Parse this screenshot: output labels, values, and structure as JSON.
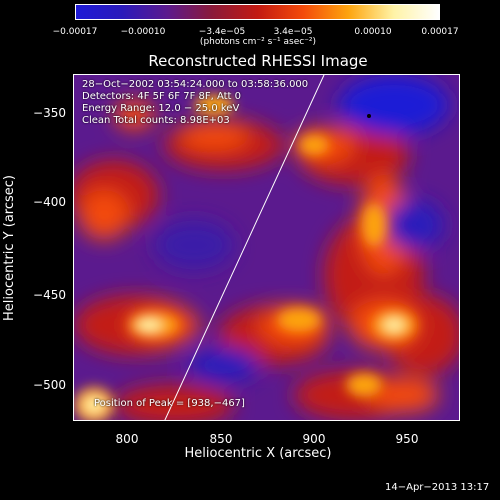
{
  "colorbar": {
    "ticks": [
      "−0.00017",
      "−0.00010",
      "−3.4e−05",
      "3.4e−05",
      "0.00010",
      "0.00017"
    ],
    "units": "(photons cm⁻² s⁻¹ asec⁻²)",
    "colors": [
      "#1e1ad6",
      "#2a1abb",
      "#5b1a8e",
      "#8a1a3a",
      "#c21a12",
      "#f34a0a",
      "#fda40e",
      "#fff3a6",
      "#ffffff"
    ]
  },
  "plot": {
    "title": "Reconstructed RHESSI Image",
    "info_lines": [
      "28−Oct−2002 03:54:24.000 to 03:58:36.000",
      "Detectors: 4F 5F 6F 7F 8F, Att 0",
      "Energy Range: 12.0 − 25.0 keV",
      "Clean     Total counts: 8.98E+03"
    ],
    "peak_text": "Position of Peak = [938,−467]",
    "xlabel": "Heliocentric X (arcsec)",
    "ylabel": "Heliocentric Y (arcsec)",
    "xticks": [
      "800",
      "850",
      "900",
      "950"
    ],
    "yticks": [
      "−350",
      "−400",
      "−450",
      "−500"
    ]
  },
  "footer": {
    "timestamp": "14−Apr−2013 13:17"
  }
}
